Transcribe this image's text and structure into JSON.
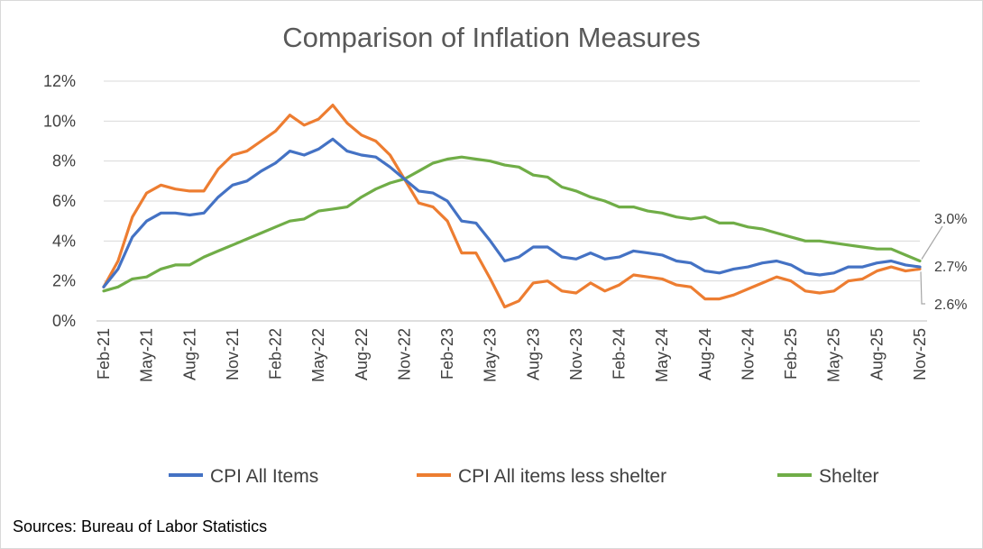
{
  "chart_data": {
    "type": "line",
    "title": "Comparison of Inflation Measures",
    "xlabel": "",
    "ylabel": "",
    "ylim": [
      0,
      12
    ],
    "y_ticks": [
      "0%",
      "2%",
      "4%",
      "6%",
      "8%",
      "10%",
      "12%"
    ],
    "x_tick_labels": [
      "Feb-21",
      "May-21",
      "Aug-21",
      "Nov-21",
      "Feb-22",
      "May-22",
      "Aug-22",
      "Nov-22",
      "Feb-23",
      "May-23",
      "Aug-23",
      "Nov-23",
      "Feb-24",
      "May-24",
      "Aug-24",
      "Nov-24",
      "Feb-25",
      "May-25",
      "Aug-25",
      "Nov-25"
    ],
    "x_count": 58,
    "legend_position": "bottom",
    "series": [
      {
        "name": "CPI All Items",
        "color": "#4472C4",
        "values": [
          1.7,
          2.6,
          4.2,
          5.0,
          5.4,
          5.4,
          5.3,
          5.4,
          6.2,
          6.8,
          7.0,
          7.5,
          7.9,
          8.5,
          8.3,
          8.6,
          9.1,
          8.5,
          8.3,
          8.2,
          7.7,
          7.1,
          6.5,
          6.4,
          6.0,
          5.0,
          4.9,
          4.0,
          3.0,
          3.2,
          3.7,
          3.7,
          3.2,
          3.1,
          3.4,
          3.1,
          3.2,
          3.5,
          3.4,
          3.3,
          3.0,
          2.9,
          2.5,
          2.4,
          2.6,
          2.7,
          2.9,
          3.0,
          2.8,
          2.4,
          2.3,
          2.4,
          2.7,
          2.7,
          2.9,
          3.0,
          2.8,
          2.7
        ]
      },
      {
        "name": "CPI All items less shelter",
        "color": "#ED7D31",
        "values": [
          1.7,
          3.0,
          5.2,
          6.4,
          6.8,
          6.6,
          6.5,
          6.5,
          7.6,
          8.3,
          8.5,
          9.0,
          9.5,
          10.3,
          9.8,
          10.1,
          10.8,
          9.9,
          9.3,
          9.0,
          8.3,
          7.1,
          5.9,
          5.7,
          5.0,
          3.4,
          3.4,
          2.1,
          0.7,
          1.0,
          1.9,
          2.0,
          1.5,
          1.4,
          1.9,
          1.5,
          1.8,
          2.3,
          2.2,
          2.1,
          1.8,
          1.7,
          1.1,
          1.1,
          1.3,
          1.6,
          1.9,
          2.2,
          2.0,
          1.5,
          1.4,
          1.5,
          2.0,
          2.1,
          2.5,
          2.7,
          2.5,
          2.6
        ]
      },
      {
        "name": "Shelter",
        "color": "#70AD47",
        "values": [
          1.5,
          1.7,
          2.1,
          2.2,
          2.6,
          2.8,
          2.8,
          3.2,
          3.5,
          3.8,
          4.1,
          4.4,
          4.7,
          5.0,
          5.1,
          5.5,
          5.6,
          5.7,
          6.2,
          6.6,
          6.9,
          7.1,
          7.5,
          7.9,
          8.1,
          8.2,
          8.1,
          8.0,
          7.8,
          7.7,
          7.3,
          7.2,
          6.7,
          6.5,
          6.2,
          6.0,
          5.7,
          5.7,
          5.5,
          5.4,
          5.2,
          5.1,
          5.2,
          4.9,
          4.9,
          4.7,
          4.6,
          4.4,
          4.2,
          4.0,
          4.0,
          3.9,
          3.8,
          3.7,
          3.6,
          3.6,
          3.3,
          3.0
        ]
      }
    ],
    "annotations": [
      {
        "text": "3.0%",
        "series": "Shelter"
      },
      {
        "text": "2.7%",
        "series": "CPI All Items"
      },
      {
        "text": "2.6%",
        "series": "CPI All items less shelter"
      }
    ]
  },
  "source_note": "Sources: Bureau of Labor Statistics"
}
